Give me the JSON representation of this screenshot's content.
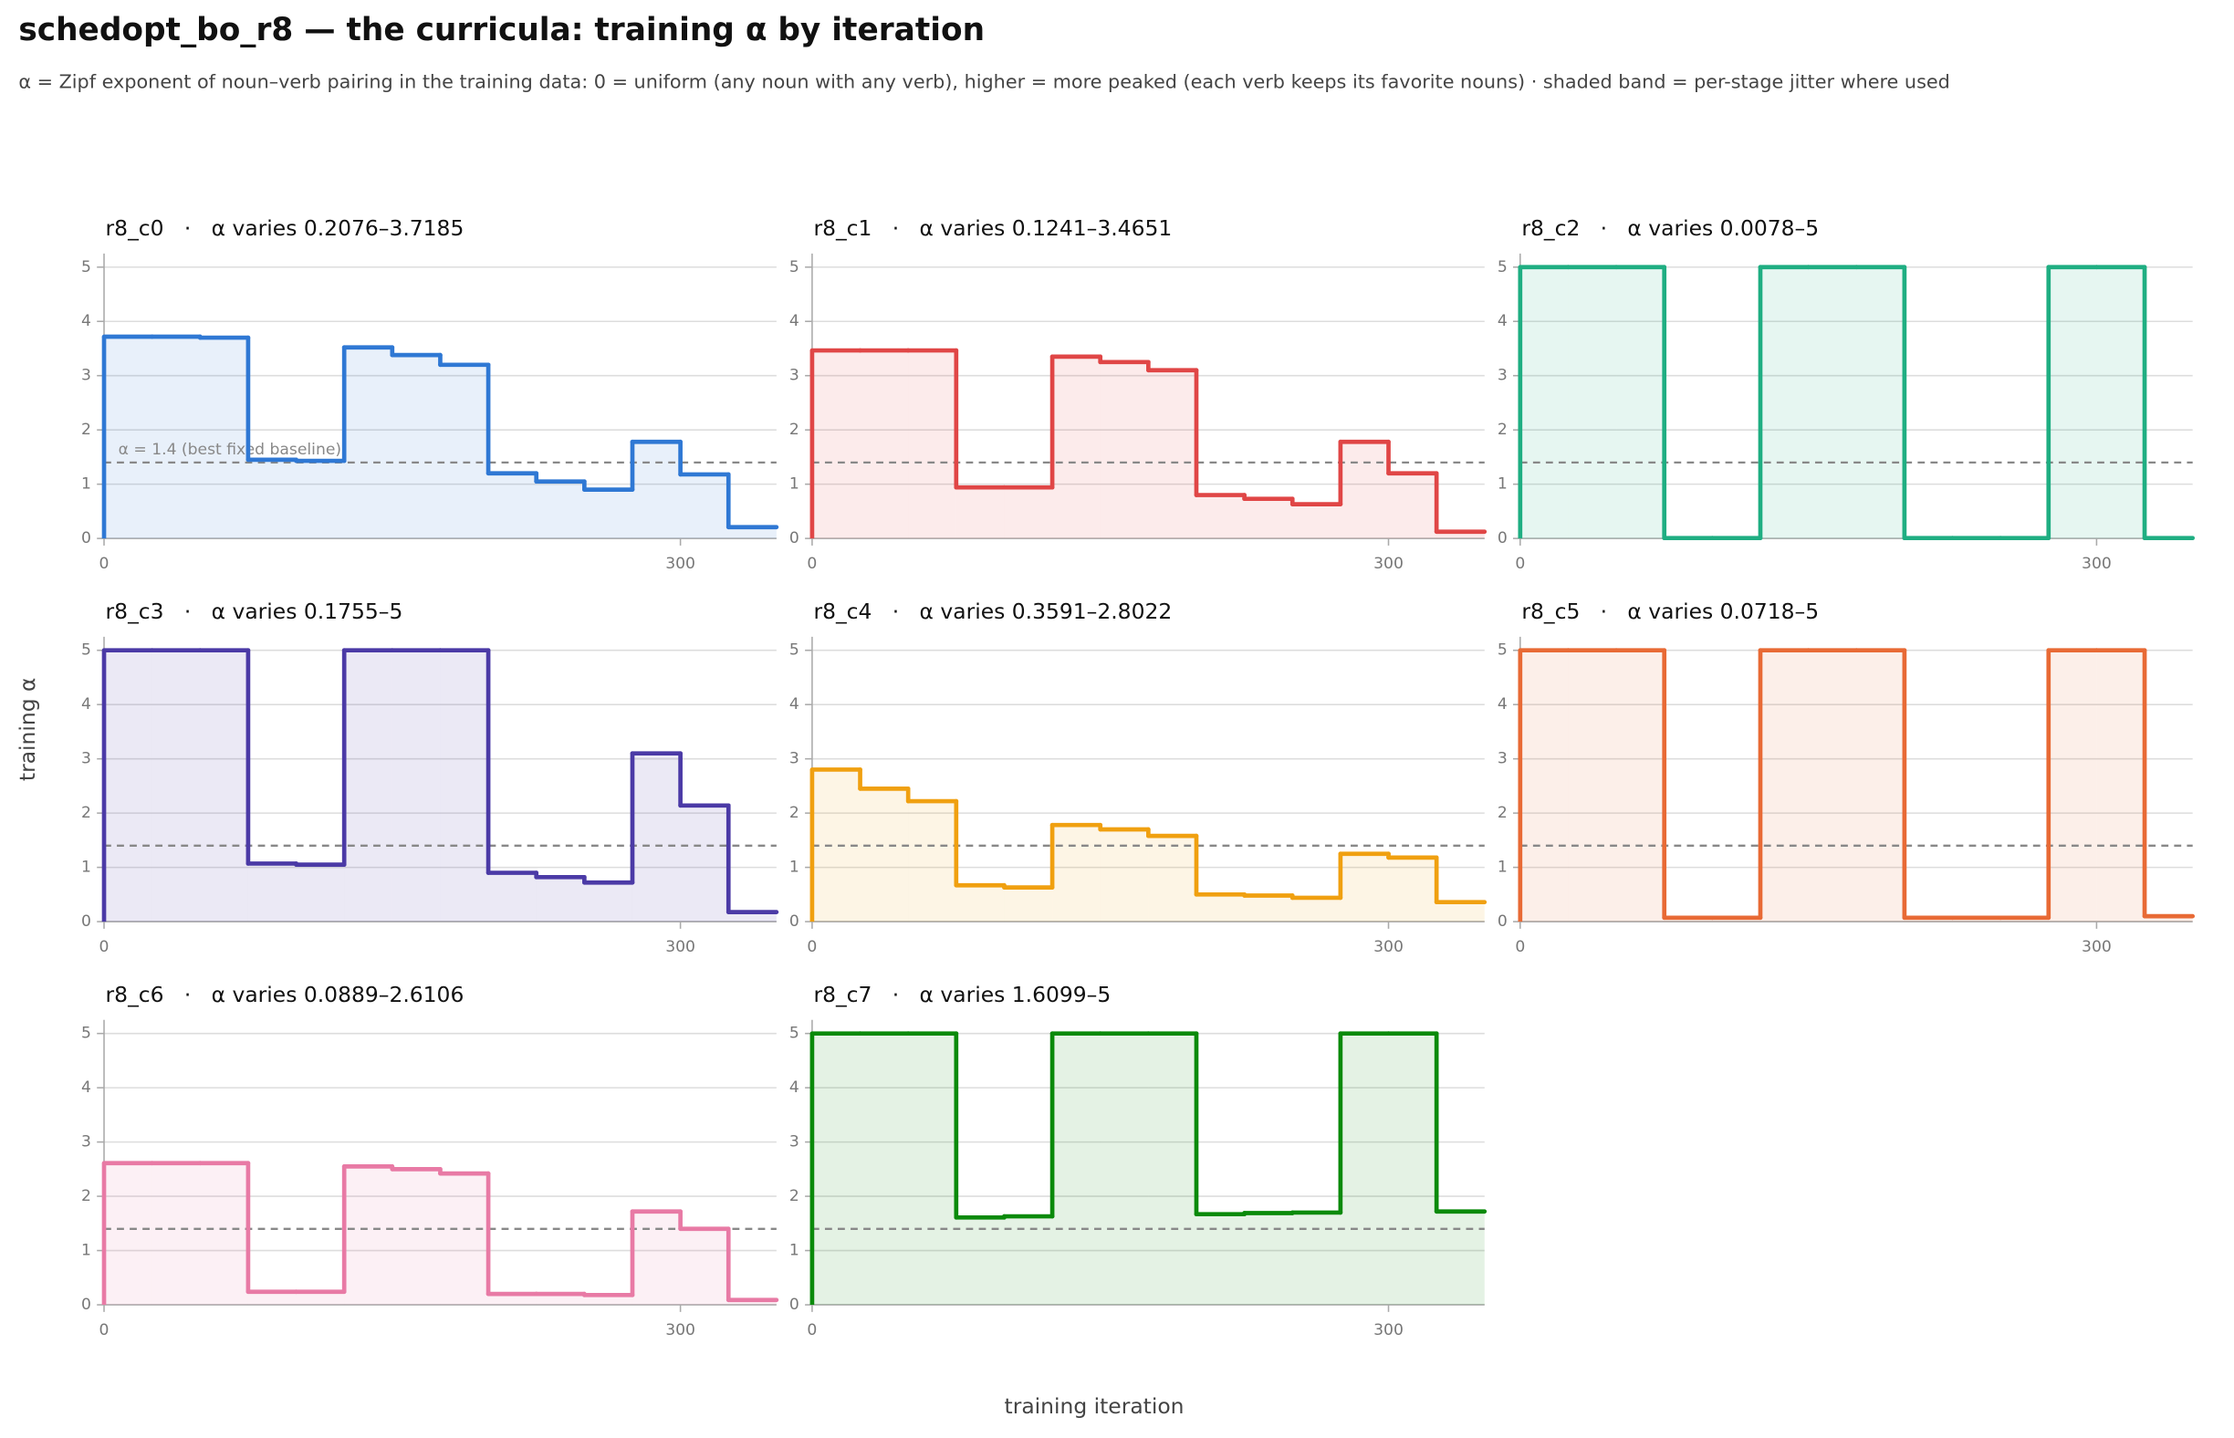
{
  "title": "schedopt_bo_r8 — the curricula: training α by iteration",
  "subtitle": "α = Zipf exponent of noun–verb pairing in the training data: 0 = uniform (any noun with any verb), higher = more peaked (each verb keeps its favorite nouns) · shaded band = per-stage jitter where used",
  "ylabel": "training α",
  "xlabel": "training iteration",
  "chart_data": [
    {
      "type": "step",
      "title": "r8_c0   ·   α varies 0.2076–3.7185",
      "color": "#2f78d4",
      "annotation": "α = 1.4 (best fixed baseline)",
      "baseline": 1.4,
      "x": [
        0,
        25,
        50,
        75,
        100,
        125,
        150,
        175,
        200,
        225,
        250,
        275,
        300,
        325
      ],
      "values": [
        3.7185,
        3.7185,
        3.7,
        1.45,
        1.43,
        3.52,
        3.38,
        3.2,
        1.2,
        1.05,
        0.9,
        1.78,
        1.18,
        0.2076
      ],
      "xlim": [
        0,
        350
      ],
      "ylim": [
        0,
        5.25
      ],
      "xticks": [
        0,
        300
      ],
      "yticks": [
        0,
        1,
        2,
        3,
        4,
        5
      ],
      "grid": true
    },
    {
      "type": "step",
      "title": "r8_c1   ·   α varies 0.1241–3.4651",
      "color": "#e04646",
      "baseline": 1.4,
      "x": [
        0,
        25,
        50,
        75,
        100,
        125,
        150,
        175,
        200,
        225,
        250,
        275,
        300,
        325
      ],
      "values": [
        3.4651,
        3.4651,
        3.4651,
        0.94,
        0.94,
        3.35,
        3.25,
        3.1,
        0.8,
        0.73,
        0.63,
        1.78,
        1.2,
        0.1241
      ],
      "xlim": [
        0,
        350
      ],
      "ylim": [
        0,
        5.25
      ],
      "xticks": [
        0,
        300
      ],
      "yticks": [
        0,
        1,
        2,
        3,
        4,
        5
      ],
      "grid": true
    },
    {
      "type": "step",
      "title": "r8_c2   ·   α varies 0.0078–5",
      "color": "#1fae82",
      "baseline": 1.4,
      "x": [
        0,
        25,
        50,
        75,
        100,
        125,
        150,
        175,
        200,
        225,
        250,
        275,
        300,
        325
      ],
      "values": [
        5,
        5,
        5,
        0.0078,
        0.0078,
        5,
        5,
        5,
        0.0078,
        0.0078,
        0.0078,
        5,
        5,
        0.0078
      ],
      "xlim": [
        0,
        350
      ],
      "ylim": [
        0,
        5.25
      ],
      "xticks": [
        0,
        300
      ],
      "yticks": [
        0,
        1,
        2,
        3,
        4,
        5
      ],
      "grid": true
    },
    {
      "type": "step",
      "title": "r8_c3   ·   α varies 0.1755–5",
      "color": "#4b3aa6",
      "baseline": 1.4,
      "x": [
        0,
        25,
        50,
        75,
        100,
        125,
        150,
        175,
        200,
        225,
        250,
        275,
        300,
        325
      ],
      "values": [
        5,
        5,
        5,
        1.07,
        1.05,
        5,
        5,
        5,
        0.9,
        0.82,
        0.72,
        3.1,
        2.14,
        0.1755
      ],
      "xlim": [
        0,
        350
      ],
      "ylim": [
        0,
        5.25
      ],
      "xticks": [
        0,
        300
      ],
      "yticks": [
        0,
        1,
        2,
        3,
        4,
        5
      ],
      "grid": true
    },
    {
      "type": "step",
      "title": "r8_c4   ·   α varies 0.3591–2.8022",
      "color": "#f0a010",
      "baseline": 1.4,
      "x": [
        0,
        25,
        50,
        75,
        100,
        125,
        150,
        175,
        200,
        225,
        250,
        275,
        300,
        325
      ],
      "values": [
        2.8022,
        2.45,
        2.22,
        0.67,
        0.63,
        1.78,
        1.7,
        1.58,
        0.5,
        0.48,
        0.44,
        1.25,
        1.18,
        0.3591
      ],
      "xlim": [
        0,
        350
      ],
      "ylim": [
        0,
        5.25
      ],
      "xticks": [
        0,
        300
      ],
      "yticks": [
        0,
        1,
        2,
        3,
        4,
        5
      ],
      "grid": true
    },
    {
      "type": "step",
      "title": "r8_c5   ·   α varies 0.0718–5",
      "color": "#e86a35",
      "baseline": 1.4,
      "x": [
        0,
        25,
        50,
        75,
        100,
        125,
        150,
        175,
        200,
        225,
        250,
        275,
        300,
        325
      ],
      "values": [
        5,
        5,
        5,
        0.0718,
        0.0718,
        5,
        5,
        5,
        0.0718,
        0.0718,
        0.0718,
        5,
        5,
        0.1
      ],
      "xlim": [
        0,
        350
      ],
      "ylim": [
        0,
        5.25
      ],
      "xticks": [
        0,
        300
      ],
      "yticks": [
        0,
        1,
        2,
        3,
        4,
        5
      ],
      "grid": true
    },
    {
      "type": "step",
      "title": "r8_c6   ·   α varies 0.0889–2.6106",
      "color": "#e87aa5",
      "baseline": 1.4,
      "x": [
        0,
        25,
        50,
        75,
        100,
        125,
        150,
        175,
        200,
        225,
        250,
        275,
        300,
        325
      ],
      "values": [
        2.6106,
        2.6106,
        2.6106,
        0.24,
        0.24,
        2.55,
        2.5,
        2.42,
        0.2,
        0.2,
        0.18,
        1.72,
        1.4,
        0.0889
      ],
      "xlim": [
        0,
        350
      ],
      "ylim": [
        0,
        5.25
      ],
      "xticks": [
        0,
        300
      ],
      "yticks": [
        0,
        1,
        2,
        3,
        4,
        5
      ],
      "grid": true
    },
    {
      "type": "step",
      "title": "r8_c7   ·   α varies 1.6099–5",
      "color": "#0a8a0a",
      "baseline": 1.4,
      "x": [
        0,
        25,
        50,
        75,
        100,
        125,
        150,
        175,
        200,
        225,
        250,
        275,
        300,
        325
      ],
      "values": [
        5,
        5,
        5,
        1.6099,
        1.63,
        5,
        5,
        5,
        1.67,
        1.69,
        1.7,
        5,
        5,
        1.72
      ],
      "xlim": [
        0,
        350
      ],
      "ylim": [
        0,
        5.25
      ],
      "xticks": [
        0,
        300
      ],
      "yticks": [
        0,
        1,
        2,
        3,
        4,
        5
      ],
      "grid": true
    }
  ]
}
